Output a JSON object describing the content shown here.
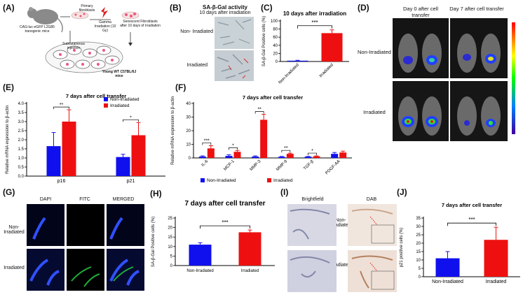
{
  "labels": {
    "A": "(A)",
    "B": "(B)",
    "C": "(C)",
    "D": "(D)",
    "E": "(E)",
    "F": "(F)",
    "G": "(G)",
    "H": "(H)",
    "I": "(I)",
    "J": "(J)"
  },
  "panelA": {
    "mouse": "CAG-luc-eGFP L2G85 transgenic mice",
    "primary": "Primary fibroblasts",
    "gamma": "Gamma Irradiation (10 Gy)",
    "senescent": "Senescent Fibroblasts after 10 days of irradiation",
    "injection": "Subcutaneous injection",
    "recipient": "Young WT C57BL/6J mice"
  },
  "panelB": {
    "title1": "SA-β-Gal activity",
    "title2": "10 days after irradiation",
    "row1": "Non- Irradiated",
    "row2": "Irradiated"
  },
  "panelD": {
    "col1": "Day 0 after cell transfer",
    "col2": "Day 7 after cell transfer",
    "row1": "Non-Irradiated",
    "row2": "Irradiated"
  },
  "panelF_title": "7 days after cell transfer",
  "panelG": {
    "c1": "DAPI",
    "c2": "FITC",
    "c3": "MERGED",
    "r1": "Non-Irradiated",
    "r2": "Irradiated"
  },
  "panelI": {
    "c1": "Brightfield",
    "c2": "DAB",
    "r1": "Non-Irradiated",
    "r2": "Irradiated"
  },
  "colors": {
    "blue": "#1010ee",
    "red": "#ee1010"
  },
  "chart_data": [
    {
      "id": "C",
      "type": "bar",
      "title": "10 days after irradiation",
      "ylabel": "SA-β-Gal Positive cells (%)",
      "categories": [
        "Non-Irradiated",
        "Irradiated"
      ],
      "values": [
        2,
        70
      ],
      "errors": [
        1,
        8
      ],
      "colors": [
        "#1010ee",
        "#ee1010"
      ],
      "ylim": [
        0,
        100
      ],
      "yticks": [
        "0",
        "20",
        "40",
        "60",
        "80",
        "100"
      ],
      "sig": "***"
    },
    {
      "id": "E",
      "type": "bar",
      "title": "7 days after cell transfer",
      "ylabel": "Relative mRNA expression to β-actin",
      "categories": [
        "p16",
        "p21"
      ],
      "series": [
        {
          "name": "Non-Irradiated",
          "values": [
            1.65,
            1.05
          ],
          "errors": [
            0.75,
            0.15
          ]
        },
        {
          "name": "Irradiated",
          "values": [
            3.0,
            2.25
          ],
          "errors": [
            0.65,
            0.7
          ]
        }
      ],
      "ylim": [
        0,
        4
      ],
      "yticks": [
        "0.0",
        "0.5",
        "1.0",
        "1.5",
        "2.0",
        "2.5",
        "3.0",
        "3.5",
        "4.0"
      ],
      "sig": [
        "**",
        "*"
      ]
    },
    {
      "id": "F",
      "type": "bar",
      "title": "7 days after cell transfer",
      "ylabel": "Relative mRNA expression to β-actin",
      "categories": [
        "IL-6",
        "MCP-1",
        "MMP-3",
        "MMP-9",
        "TGF-β",
        "PDGF-AA"
      ],
      "series": [
        {
          "name": "Non-Irradiated",
          "values": [
            1,
            1.5,
            1,
            0.8,
            0.9,
            3
          ],
          "errors": [
            0.5,
            0.8,
            0.5,
            0.3,
            0.2,
            1
          ]
        },
        {
          "name": "Irradiated",
          "values": [
            7,
            4.5,
            28,
            3,
            1.2,
            4
          ],
          "errors": [
            2,
            1,
            4,
            0.5,
            0.3,
            1
          ]
        }
      ],
      "ylim": [
        0,
        40
      ],
      "yticks": [
        "0",
        "10",
        "20",
        "30",
        "40"
      ],
      "sig": [
        "***",
        "*",
        "**",
        "**",
        "*",
        ""
      ]
    },
    {
      "id": "H",
      "type": "bar",
      "title": "7 days after cell transfer",
      "ylabel": "SA-β-Gal Positive cells (%)",
      "categories": [
        "Non-Irradiated",
        "Irradiated"
      ],
      "values": [
        11,
        17.5
      ],
      "errors": [
        1,
        1.2
      ],
      "colors": [
        "#1010ee",
        "#ee1010"
      ],
      "ylim": [
        0,
        25
      ],
      "yticks": [
        "0",
        "5",
        "10",
        "15",
        "20",
        "25"
      ],
      "sig": "***"
    },
    {
      "id": "J",
      "type": "bar",
      "title": "7 days after cell transfer",
      "ylabel": "p21 positive cells (%)",
      "categories": [
        "Non-Irradiated",
        "Irradiated"
      ],
      "values": [
        11,
        22
      ],
      "errors": [
        4,
        7.5
      ],
      "colors": [
        "#1010ee",
        "#ee1010"
      ],
      "ylim": [
        0,
        35
      ],
      "yticks": [
        "0",
        "5",
        "10",
        "15",
        "20",
        "25",
        "30",
        "35"
      ],
      "sig": "***"
    }
  ]
}
